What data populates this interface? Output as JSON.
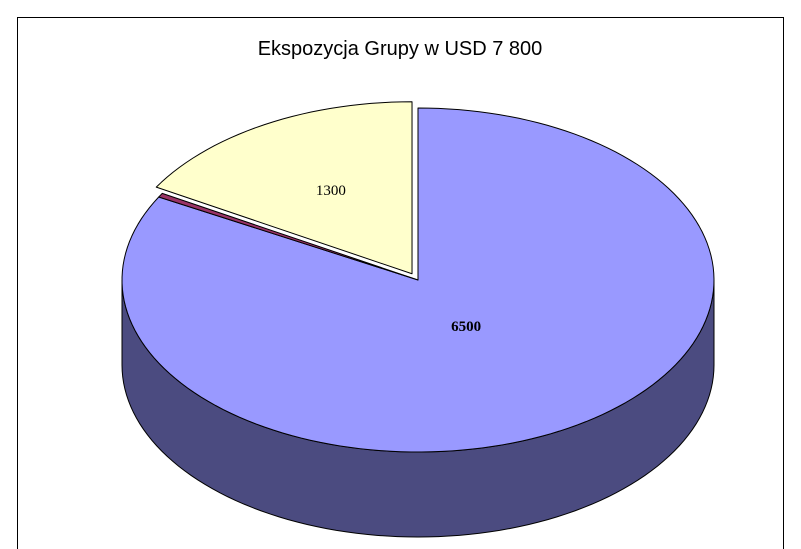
{
  "chart_data": {
    "type": "pie3d",
    "title": "Ekspozycja Grupy w USD 7 800",
    "values": [
      6500,
      30,
      1300
    ],
    "colors": [
      "#9999ff",
      "#993366",
      "#ffffcc"
    ],
    "side_colors": [
      "#4b4b80",
      "#4d1a33",
      "#80806a"
    ],
    "exploded": [
      false,
      false,
      true
    ],
    "labeled": [
      true,
      false,
      true
    ],
    "bold_labels": [
      true,
      false,
      false
    ]
  }
}
